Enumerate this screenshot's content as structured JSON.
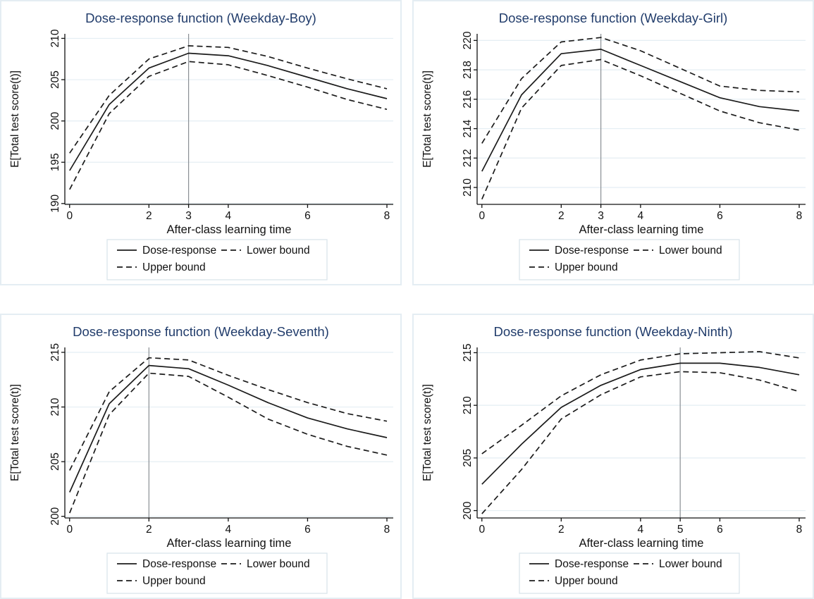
{
  "figure": {
    "legend": {
      "dose_response": "Dose-response",
      "lower_bound": "Lower bound",
      "upper_bound": "Upper bound"
    }
  },
  "colors": {
    "title_color": "#213c6b",
    "series_line": "#1b1b1b",
    "grid_line": "#e4eef3",
    "axis_line": "#111111",
    "reference_line": "#8a8f94",
    "panel_border": "#e4edf3",
    "legend_border": "#d7e3ea"
  },
  "chart_data": [
    {
      "type": "line",
      "title": "Dose-response function (Weekday-Boy)",
      "xlabel": "After-class learning time",
      "ylabel": "E[Total test score(t)]",
      "x": [
        0,
        1,
        2,
        3,
        4,
        5,
        6,
        7,
        8
      ],
      "xticks": [
        0,
        2,
        3,
        4,
        6,
        8
      ],
      "yticks": [
        190,
        195,
        200,
        205,
        210
      ],
      "xlim": [
        -0.12,
        8.16
      ],
      "ylim": [
        189.9,
        210.55
      ],
      "refline_x": 3,
      "grid": "horizontal",
      "legend_position": "bottom",
      "series": [
        {
          "name": "Dose-response",
          "style": "solid",
          "values": [
            194.0,
            202.0,
            206.4,
            208.2,
            207.9,
            206.7,
            205.3,
            203.9,
            202.7
          ]
        },
        {
          "name": "Upper bound",
          "style": "dashed",
          "values": [
            196.1,
            203.1,
            207.5,
            209.1,
            208.9,
            207.8,
            206.4,
            205.1,
            203.9
          ]
        },
        {
          "name": "Lower bound",
          "style": "dashed",
          "values": [
            191.7,
            200.9,
            205.4,
            207.2,
            206.8,
            205.5,
            204.1,
            202.6,
            201.4
          ]
        }
      ]
    },
    {
      "type": "line",
      "title": "Dose-response function (Weekday-Girl)",
      "xlabel": "After-class learning time",
      "ylabel": "E[Total test score(t)]",
      "x": [
        0,
        1,
        2,
        3,
        4,
        5,
        6,
        7,
        8
      ],
      "xticks": [
        0,
        2,
        3,
        4,
        6,
        8
      ],
      "yticks": [
        210,
        212,
        214,
        216,
        218,
        220
      ],
      "xlim": [
        -0.12,
        8.16
      ],
      "ylim": [
        208.85,
        220.45
      ],
      "refline_x": 3,
      "grid": "horizontal",
      "legend_position": "bottom",
      "series": [
        {
          "name": "Dose-response",
          "style": "solid",
          "values": [
            211.1,
            216.3,
            219.1,
            219.4,
            218.3,
            217.2,
            216.1,
            215.5,
            215.2
          ]
        },
        {
          "name": "Upper bound",
          "style": "dashed",
          "values": [
            213.0,
            217.4,
            219.9,
            220.2,
            219.3,
            218.1,
            216.9,
            216.6,
            216.5
          ]
        },
        {
          "name": "Lower bound",
          "style": "dashed",
          "values": [
            209.2,
            215.4,
            218.3,
            218.7,
            217.6,
            216.4,
            215.2,
            214.4,
            213.9
          ]
        }
      ]
    },
    {
      "type": "line",
      "title": "Dose-response function (Weekday-Seventh)",
      "xlabel": "After-class learning time",
      "ylabel": "E[Total test score(t)]",
      "x": [
        0,
        1,
        2,
        3,
        4,
        5,
        6,
        7,
        8
      ],
      "xticks": [
        0,
        2,
        4,
        6,
        8
      ],
      "yticks": [
        200,
        205,
        210,
        215
      ],
      "xlim": [
        -0.12,
        8.16
      ],
      "ylim": [
        199.85,
        215.45
      ],
      "refline_x": 2,
      "grid": "horizontal",
      "legend_position": "bottom",
      "series": [
        {
          "name": "Dose-response",
          "style": "solid",
          "values": [
            202.2,
            210.3,
            213.8,
            213.5,
            212.0,
            210.4,
            209.0,
            208.0,
            207.2
          ]
        },
        {
          "name": "Upper bound",
          "style": "dashed",
          "values": [
            204.2,
            211.4,
            214.5,
            214.3,
            212.9,
            211.6,
            210.4,
            209.4,
            208.7
          ]
        },
        {
          "name": "Lower bound",
          "style": "dashed",
          "values": [
            200.3,
            209.3,
            213.1,
            212.8,
            210.9,
            208.9,
            207.5,
            206.4,
            205.6
          ]
        }
      ]
    },
    {
      "type": "line",
      "title": "Dose-response function (Weekday-Ninth)",
      "xlabel": "After-class learning time",
      "ylabel": "E[Total test score(t)]",
      "x": [
        0,
        1,
        2,
        3,
        4,
        5,
        6,
        7,
        8
      ],
      "xticks": [
        0,
        2,
        4,
        5,
        6,
        8
      ],
      "yticks": [
        200,
        205,
        210,
        215
      ],
      "xlim": [
        -0.12,
        8.16
      ],
      "ylim": [
        199.3,
        215.5
      ],
      "refline_x": 5,
      "grid": "horizontal",
      "legend_position": "bottom",
      "series": [
        {
          "name": "Dose-response",
          "style": "solid",
          "values": [
            202.5,
            206.3,
            209.8,
            211.9,
            213.4,
            214.0,
            214.0,
            213.6,
            212.9
          ]
        },
        {
          "name": "Upper bound",
          "style": "dashed",
          "values": [
            205.4,
            208.1,
            210.9,
            212.9,
            214.3,
            214.9,
            215.0,
            215.1,
            214.5
          ]
        },
        {
          "name": "Lower bound",
          "style": "dashed",
          "values": [
            199.7,
            203.9,
            208.7,
            211.0,
            212.7,
            213.2,
            213.1,
            212.4,
            211.3
          ]
        }
      ]
    }
  ]
}
